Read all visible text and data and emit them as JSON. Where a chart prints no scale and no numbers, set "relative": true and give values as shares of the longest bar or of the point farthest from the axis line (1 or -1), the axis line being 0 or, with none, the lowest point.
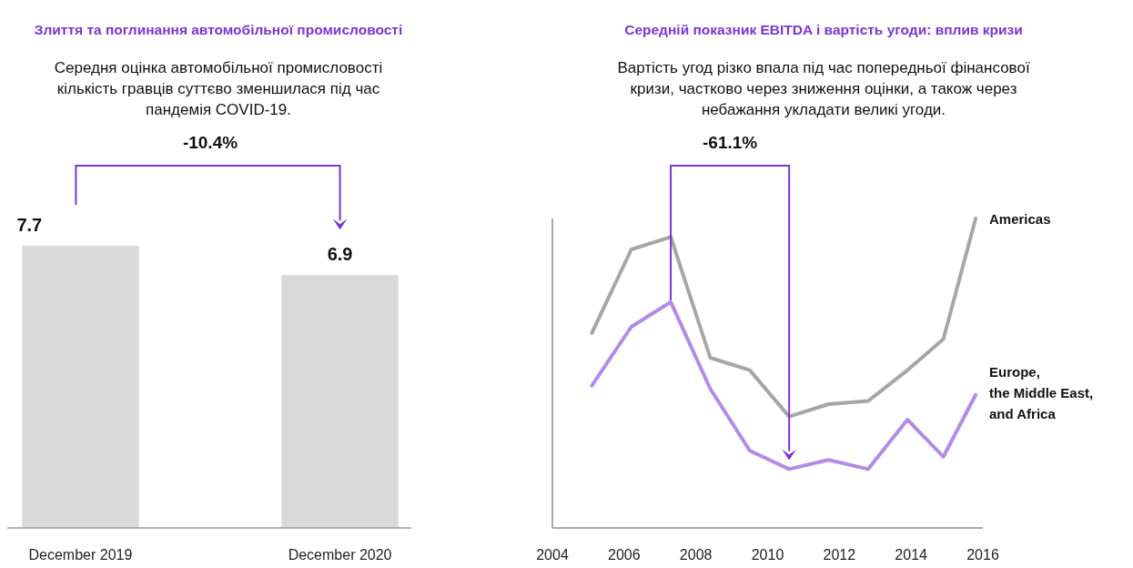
{
  "chart_data": [
    {
      "type": "bar",
      "title": "Злиття та поглинання автомобільної промисловості",
      "subtitle": "Середня оцінка автомобільної промисловості\nкількість гравців суттєво зменшилася під час\nпандемія COVID-19.",
      "categories": [
        "December 2019",
        "December 2020"
      ],
      "values": [
        7.7,
        6.9
      ],
      "color": "#d9d9d9",
      "data_labels": true,
      "annotations": [
        "-10.4%"
      ]
    },
    {
      "type": "line",
      "title": "Середній показник EBITDA і вартість угоди: вплив кризи",
      "subtitle": "Вартість угод різко впала під час попередньої фінансової\nкризи, частково через зниження оцінки, а також через\nнебажання укладати великі угоди.",
      "x": [
        2005.1,
        2006.2,
        2007.3,
        2008.4,
        2009.5,
        2010.6,
        2011.7,
        2012.8,
        2013.9,
        2014.9,
        2015.8
      ],
      "relative": true,
      "xlim": [
        2004,
        2016
      ],
      "xticks": [
        2004,
        2006,
        2008,
        2010,
        2012,
        2014,
        2016
      ],
      "series": [
        {
          "name": "Americas",
          "color": "#a6a6a6",
          "values": [
            0.63,
            0.9,
            0.94,
            0.55,
            0.51,
            0.36,
            0.4,
            0.41,
            0.51,
            0.61,
            1.0
          ]
        },
        {
          "name": "Europe, the Middle East, and Africa",
          "color": "#b48ae8",
          "values": [
            0.46,
            0.65,
            0.73,
            0.45,
            0.25,
            0.19,
            0.22,
            0.19,
            0.35,
            0.23,
            0.43
          ]
        }
      ],
      "annotations": [
        "-61.1%"
      ]
    }
  ]
}
